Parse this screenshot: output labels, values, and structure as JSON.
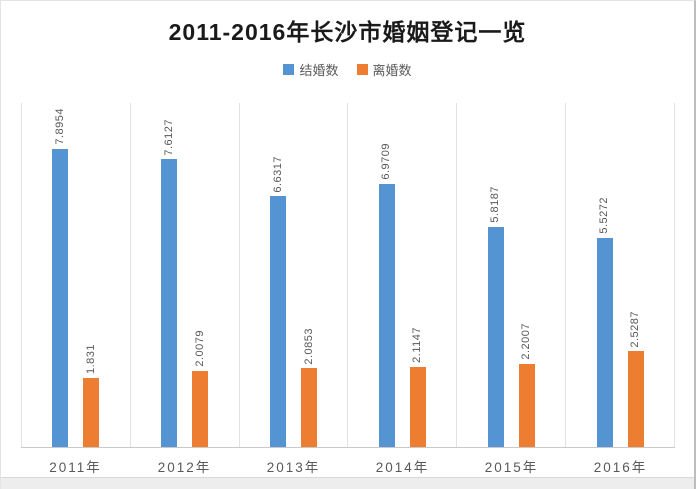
{
  "chart_data": {
    "type": "bar",
    "title": "2011-2016年长沙市婚姻登记一览",
    "categories": [
      "2011年",
      "2012年",
      "2013年",
      "2014年",
      "2015年",
      "2016年"
    ],
    "series": [
      {
        "name": "结婚数",
        "color": "#5494d2",
        "values": [
          7.8954,
          7.6127,
          6.6317,
          6.9709,
          5.8187,
          5.5272
        ],
        "labels": [
          "7.8954",
          "7.6127",
          "6.6317",
          "6.9709",
          "5.8187",
          "5.5272"
        ]
      },
      {
        "name": "离婚数",
        "color": "#ed7d31",
        "values": [
          1.831,
          2.0079,
          2.0853,
          2.1147,
          2.2007,
          2.5287
        ],
        "labels": [
          "1.831",
          "2.0079",
          "2.0853",
          "2.1147",
          "2.2007",
          "2.5287"
        ]
      }
    ],
    "ylim": [
      0,
      9.1
    ],
    "grid": "vertical-panel-separators",
    "legend_position": "top",
    "data_label_rotation": "vertical-bottom-to-top"
  },
  "colors": {
    "title_text": "#1a1a1a",
    "label_text": "#595959",
    "axis_line": "#c9c9c9",
    "panel_separator": "#e2e2e2",
    "bottom_strip": "#ededed"
  }
}
